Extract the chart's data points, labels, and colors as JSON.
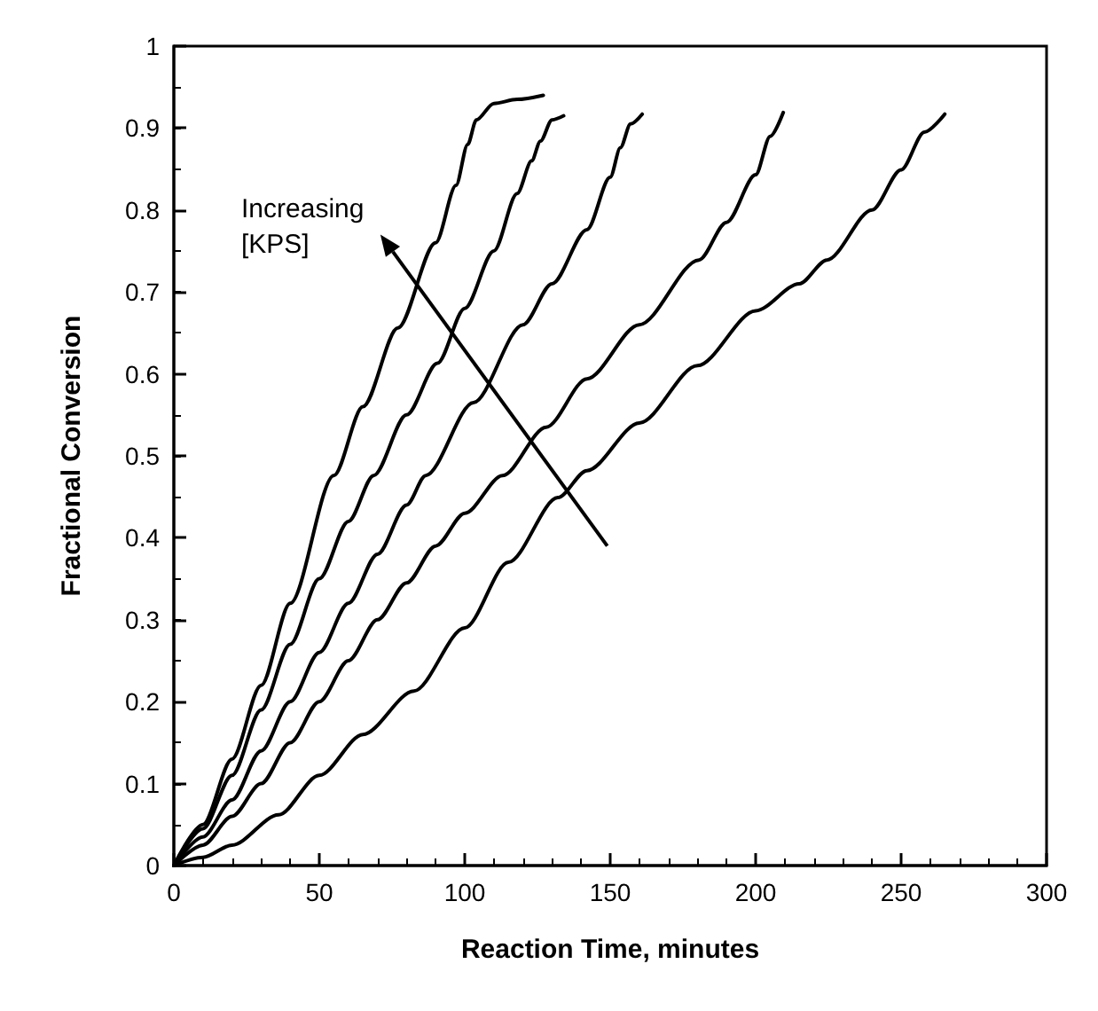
{
  "chart_data": {
    "type": "line",
    "xlabel": "Reaction Time, minutes",
    "ylabel": "Fractional Conversion",
    "xlim": [
      0,
      300
    ],
    "xticks": [
      0,
      50,
      100,
      150,
      200,
      250,
      300
    ],
    "ylim": [
      0,
      1
    ],
    "yticks": [
      0,
      0.1,
      0.2,
      0.3,
      0.4,
      0.5,
      0.6,
      0.7,
      0.8,
      0.9,
      1
    ],
    "grid": false,
    "marker": "none",
    "line_style": "solid",
    "annotations": [
      "Increasing\n[KPS]"
    ],
    "series": [
      {
        "color": "#000000",
        "x": [
          0,
          10,
          20,
          30,
          40,
          55,
          65,
          77,
          90,
          97,
          101,
          104,
          110,
          118,
          127
        ],
        "values": [
          0,
          0.05,
          0.13,
          0.22,
          0.32,
          0.476,
          0.56,
          0.656,
          0.76,
          0.83,
          0.88,
          0.91,
          0.93,
          0.935,
          0.94
        ]
      },
      {
        "color": "#000000",
        "x": [
          0,
          10,
          20,
          30,
          40,
          50,
          60,
          68.7,
          80,
          90.6,
          100,
          110,
          118,
          123,
          126,
          130,
          134
        ],
        "values": [
          0,
          0.045,
          0.11,
          0.19,
          0.27,
          0.35,
          0.42,
          0.476,
          0.55,
          0.613,
          0.68,
          0.75,
          0.82,
          0.86,
          0.884,
          0.91,
          0.915
        ]
      },
      {
        "color": "#000000",
        "x": [
          0,
          10,
          20,
          30,
          40,
          50,
          60,
          70,
          80,
          86.6,
          103,
          120,
          130,
          142,
          150,
          153.5,
          157,
          161
        ],
        "values": [
          0,
          0.035,
          0.08,
          0.14,
          0.2,
          0.26,
          0.32,
          0.38,
          0.44,
          0.476,
          0.565,
          0.66,
          0.71,
          0.776,
          0.84,
          0.876,
          0.905,
          0.917
        ]
      },
      {
        "color": "#000000",
        "x": [
          0,
          10,
          20,
          30,
          40,
          50,
          60,
          70,
          80,
          90,
          100,
          113,
          128,
          142,
          160,
          180.5,
          190,
          200,
          205,
          209.5
        ],
        "values": [
          0,
          0.025,
          0.06,
          0.1,
          0.15,
          0.2,
          0.25,
          0.3,
          0.345,
          0.39,
          0.43,
          0.476,
          0.535,
          0.594,
          0.66,
          0.739,
          0.785,
          0.843,
          0.89,
          0.919
        ]
      },
      {
        "color": "#000000",
        "x": [
          0,
          10,
          20,
          36,
          50,
          65,
          82.5,
          100,
          115,
          132,
          142,
          160,
          180,
          200,
          215,
          224.5,
          240,
          250,
          258,
          265
        ],
        "values": [
          0,
          0.01,
          0.025,
          0.062,
          0.11,
          0.16,
          0.213,
          0.29,
          0.37,
          0.449,
          0.482,
          0.54,
          0.61,
          0.677,
          0.71,
          0.739,
          0.8,
          0.849,
          0.895,
          0.917
        ]
      }
    ]
  }
}
